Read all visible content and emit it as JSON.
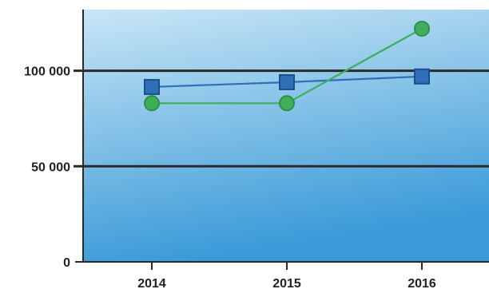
{
  "chart_data": {
    "type": "line",
    "title": "",
    "xlabel": "",
    "ylabel": "",
    "categories": [
      "2014",
      "2015",
      "2016"
    ],
    "ylim": [
      0,
      132000
    ],
    "yticks": [
      0,
      50000,
      100000
    ],
    "ytick_labels": [
      "0",
      "50 000",
      "100 000"
    ],
    "grid": "horizontal lines at 50 000 and 100 000",
    "legend": "none",
    "series": [
      {
        "values": [
          91500,
          94000,
          97000
        ],
        "color": "#2e6fb8",
        "marker": "square"
      },
      {
        "values": [
          83000,
          83000,
          122000
        ],
        "color": "#3fae5a",
        "marker": "circle"
      }
    ],
    "background": {
      "gradient_top": "#c9e6f6",
      "gradient_bottom": "#3a9ad8"
    }
  }
}
